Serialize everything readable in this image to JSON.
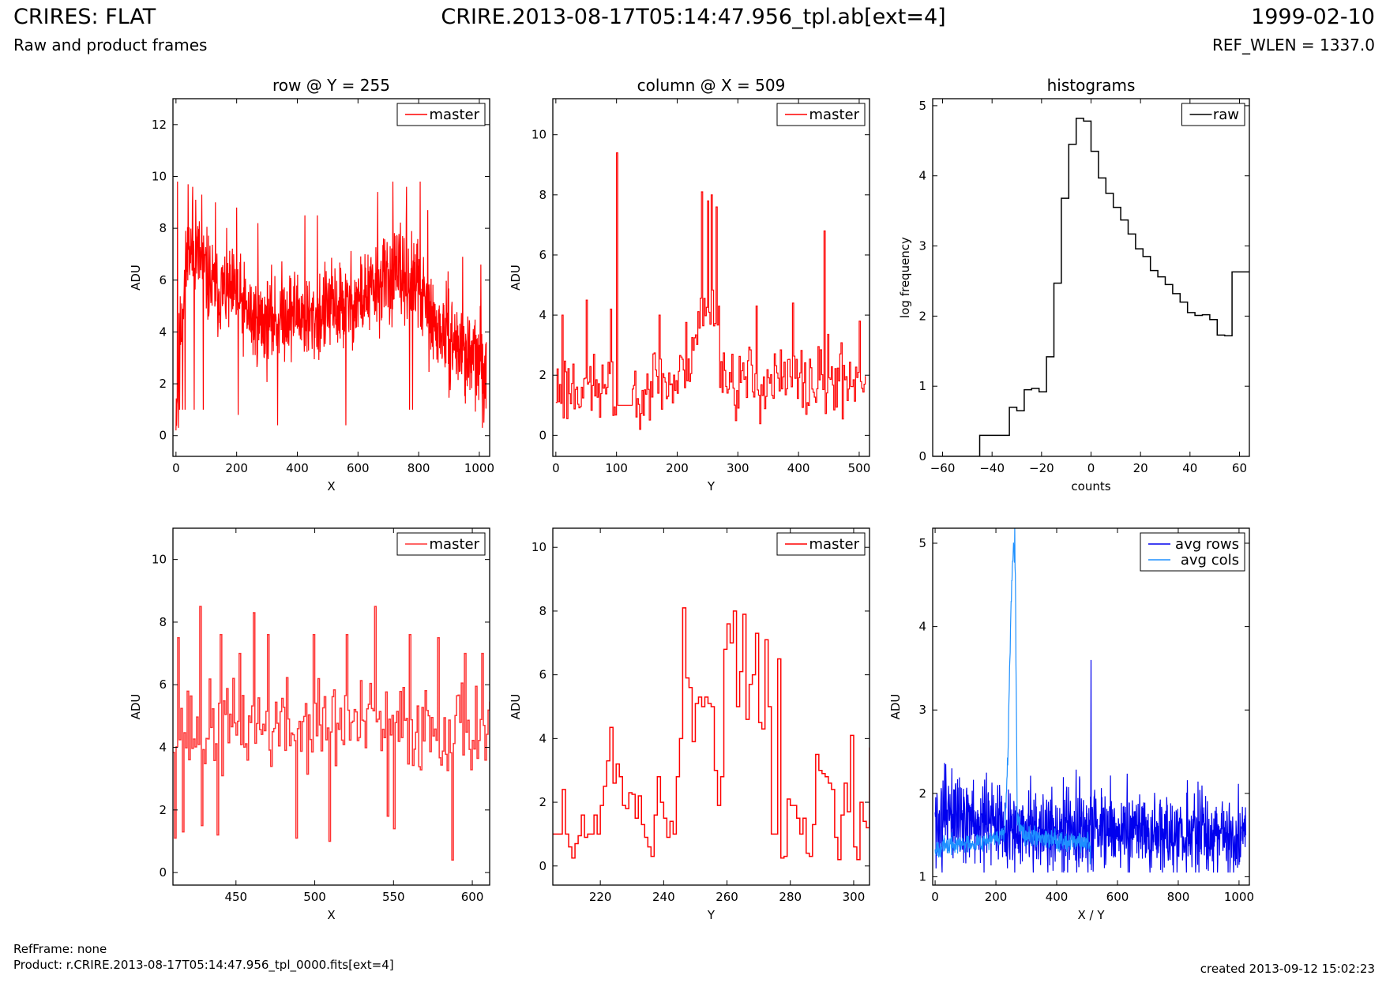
{
  "header": {
    "title": "CRIRES: FLAT",
    "subtitle": "Raw and product frames",
    "file": "CRIRE.2013-08-17T05:14:47.956_tpl.ab[ext=4]",
    "date": "1999-02-10",
    "ref_wlen": "REF_WLEN = 1337.0"
  },
  "footer": {
    "refframe": "RefFrame: none",
    "product": "Product: r.CRIRE.2013-08-17T05:14:47.956_tpl_0000.fits[ext=4]",
    "created": "created 2013-09-12 15:02:23"
  },
  "colors": {
    "master": "#ff0000",
    "master_zoom": "#ff3333",
    "raw": "#000000",
    "avg_rows": "#0000ee",
    "avg_cols": "#1e90ff"
  },
  "chart_data": [
    {
      "id": "row",
      "type": "line",
      "title": "row @ Y = 255",
      "xlabel": "X",
      "ylabel": "ADU",
      "xlim": [
        -10,
        1034
      ],
      "ylim": [
        -0.8,
        13
      ],
      "xticks": [
        0,
        200,
        400,
        600,
        800,
        1000
      ],
      "yticks": [
        0,
        2,
        4,
        6,
        8,
        10,
        12
      ],
      "legend": "top-right",
      "grid": false,
      "series": [
        {
          "name": "master",
          "color": "#ff0000",
          "step": false,
          "width": 1.2,
          "x_start": 0,
          "x_step": 1,
          "anchors": [
            [
              0,
              1.0
            ],
            [
              20,
              5.0
            ],
            [
              40,
              7.0
            ],
            [
              60,
              7.2
            ],
            [
              80,
              6.8
            ],
            [
              100,
              6.2
            ],
            [
              130,
              5.5
            ],
            [
              160,
              5.6
            ],
            [
              200,
              5.3
            ],
            [
              250,
              4.5
            ],
            [
              300,
              4.3
            ],
            [
              350,
              4.7
            ],
            [
              400,
              4.8
            ],
            [
              450,
              4.4
            ],
            [
              500,
              4.9
            ],
            [
              550,
              5.0
            ],
            [
              600,
              5.2
            ],
            [
              650,
              5.6
            ],
            [
              700,
              6.1
            ],
            [
              750,
              6.2
            ],
            [
              800,
              5.7
            ],
            [
              850,
              4.2
            ],
            [
              900,
              3.8
            ],
            [
              950,
              3.2
            ],
            [
              1000,
              2.8
            ],
            [
              1023,
              2.7
            ]
          ],
          "noise": 1.5,
          "seed": 11,
          "min": 0.2,
          "spikes": [
            [
              5,
              9.8
            ],
            [
              8,
              0.3
            ],
            [
              12,
              1.0
            ],
            [
              22,
              1.0
            ],
            [
              30,
              1.0
            ],
            [
              40,
              9.7
            ],
            [
              55,
              9.6
            ],
            [
              60,
              1.0
            ],
            [
              65,
              9.1
            ],
            [
              85,
              9.3
            ],
            [
              90,
              1.0
            ],
            [
              130,
              9.0
            ],
            [
              200,
              8.8
            ],
            [
              205,
              0.8
            ],
            [
              270,
              8.2
            ],
            [
              335,
              0.4
            ],
            [
              425,
              8.5
            ],
            [
              466,
              8.5
            ],
            [
              560,
              0.4
            ],
            [
              665,
              9.4
            ],
            [
              715,
              9.8
            ],
            [
              760,
              9.6
            ],
            [
              805,
              9.8
            ],
            [
              770,
              1.0
            ],
            [
              780,
              1.0
            ],
            [
              830,
              8.7
            ],
            [
              945,
              6.9
            ],
            [
              1005,
              6.6
            ],
            [
              1010,
              0.3
            ],
            [
              1015,
              0.5
            ]
          ]
        }
      ]
    },
    {
      "id": "col",
      "type": "line",
      "title": "column @ X = 509",
      "xlabel": "Y",
      "ylabel": "ADU",
      "xlim": [
        -5,
        517
      ],
      "ylim": [
        -0.7,
        11.2
      ],
      "xticks": [
        0,
        100,
        200,
        300,
        400,
        500
      ],
      "yticks": [
        0,
        2,
        4,
        6,
        8,
        10
      ],
      "legend": "top-right",
      "grid": false,
      "series": [
        {
          "name": "master",
          "color": "#ff0000",
          "step": true,
          "width": 1.2,
          "x_start": 0,
          "x_step": 2,
          "anchors": [
            [
              0,
              1.5
            ],
            [
              50,
              1.8
            ],
            [
              100,
              1.2
            ],
            [
              150,
              1.8
            ],
            [
              200,
              1.7
            ],
            [
              240,
              4.0
            ],
            [
              260,
              4.2
            ],
            [
              280,
              1.8
            ],
            [
              350,
              1.8
            ],
            [
              400,
              1.7
            ],
            [
              450,
              1.8
            ],
            [
              510,
              2.0
            ]
          ],
          "noise": 1.1,
          "seed": 23,
          "min": 0.2,
          "flat": [
            [
              102,
              125,
              1.0
            ]
          ],
          "spikes": [
            [
              100,
              9.4
            ],
            [
              240,
              8.1
            ],
            [
              250,
              7.8
            ],
            [
              256,
              8.0
            ],
            [
              264,
              7.6
            ],
            [
              442,
              6.8
            ],
            [
              10,
              4.0
            ],
            [
              50,
              4.5
            ],
            [
              90,
              4.2
            ],
            [
              170,
              4.0
            ],
            [
              330,
              4.3
            ],
            [
              390,
              4.4
            ],
            [
              500,
              3.8
            ]
          ]
        }
      ]
    },
    {
      "id": "hist",
      "type": "histogram",
      "title": "histograms",
      "xlabel": "counts",
      "ylabel": "log frequency",
      "xlim": [
        -64,
        64
      ],
      "ylim": [
        0,
        5.1
      ],
      "xticks": [
        -60,
        -40,
        -20,
        0,
        20,
        40,
        60
      ],
      "xtick_labels": [
        "−60",
        "−40",
        "−20",
        "0",
        "20",
        "40",
        "60"
      ],
      "yticks": [
        0,
        1,
        2,
        3,
        4,
        5
      ],
      "legend": "top-right",
      "grid": false,
      "series": [
        {
          "name": "raw",
          "color": "#000000",
          "edges": [
            -64,
            -45,
            -36,
            -33,
            -30,
            -27,
            -24,
            -21,
            -18,
            -15,
            -12,
            -9,
            -6,
            -3,
            0,
            3,
            6,
            9,
            12,
            15,
            18,
            21,
            24,
            27,
            30,
            33,
            36,
            39,
            42,
            45,
            48,
            51,
            54,
            57,
            60,
            64
          ],
          "values": [
            0,
            0.3,
            0.3,
            0.7,
            0.65,
            0.95,
            0.97,
            0.92,
            1.42,
            2.47,
            3.68,
            4.45,
            4.82,
            4.78,
            4.35,
            3.97,
            3.75,
            3.55,
            3.37,
            3.17,
            2.96,
            2.85,
            2.65,
            2.56,
            2.45,
            2.32,
            2.2,
            2.05,
            2.01,
            2.02,
            1.95,
            1.73,
            1.72,
            2.63,
            2.63
          ]
        }
      ]
    },
    {
      "id": "rowzoom",
      "type": "line",
      "title": "",
      "xlabel": "X",
      "ylabel": "ADU",
      "xlim": [
        410,
        611
      ],
      "ylim": [
        -0.4,
        11
      ],
      "xticks": [
        450,
        500,
        550,
        600
      ],
      "yticks": [
        0,
        2,
        4,
        6,
        8,
        10
      ],
      "legend": "top-right",
      "grid": false,
      "series": [
        {
          "name": "master",
          "color": "#ff3333",
          "step": true,
          "width": 1.5,
          "x_start": 410,
          "x_step": 1,
          "anchors": [
            [
              410,
              4.5
            ],
            [
              450,
              4.6
            ],
            [
              500,
              4.7
            ],
            [
              550,
              4.7
            ],
            [
              600,
              4.6
            ],
            [
              611,
              4.5
            ]
          ],
          "noise": 1.25,
          "seed": 37,
          "min": 0.3,
          "spikes": [
            [
              411,
              1.1
            ],
            [
              413,
              7.5
            ],
            [
              427,
              8.5
            ],
            [
              440,
              7.6
            ],
            [
              452,
              7.0
            ],
            [
              461,
              8.3
            ],
            [
              470,
              7.6
            ],
            [
              499,
              7.6
            ],
            [
              509,
              1.0
            ],
            [
              520,
              7.6
            ],
            [
              538,
              8.5
            ],
            [
              560,
              7.6
            ],
            [
              578,
              7.5
            ],
            [
              587,
              0.4
            ],
            [
              595,
              7.0
            ],
            [
              606,
              7.0
            ],
            [
              416,
              1.3
            ],
            [
              428,
              1.5
            ],
            [
              438,
              1.2
            ],
            [
              488,
              1.1
            ],
            [
              546,
              1.8
            ],
            [
              550,
              1.4
            ]
          ]
        }
      ]
    },
    {
      "id": "colzoom",
      "type": "line",
      "title": "",
      "xlabel": "Y",
      "ylabel": "ADU",
      "xlim": [
        205,
        305
      ],
      "ylim": [
        -0.6,
        10.6
      ],
      "xticks": [
        220,
        240,
        260,
        280,
        300
      ],
      "yticks": [
        0,
        2,
        4,
        6,
        8,
        10
      ],
      "legend": "top-right",
      "grid": false,
      "series": [
        {
          "name": "master",
          "color": "#ff0000",
          "step": true,
          "width": 1.5,
          "x_start": 205,
          "x_step": 1,
          "values": [
            1.0,
            1.0,
            1.0,
            2.4,
            1.0,
            0.6,
            0.25,
            0.7,
            0.95,
            1.6,
            0.9,
            1.0,
            1.0,
            1.6,
            1.0,
            1.9,
            2.5,
            3.3,
            4.35,
            2.6,
            3.2,
            2.8,
            1.9,
            1.8,
            2.3,
            2.25,
            1.5,
            2.2,
            1.3,
            0.9,
            0.6,
            0.3,
            1.6,
            2.8,
            2.0,
            1.5,
            0.9,
            1.4,
            1.0,
            2.8,
            4.0,
            8.1,
            5.9,
            5.6,
            3.9,
            5.1,
            5.3,
            5.0,
            5.3,
            5.1,
            5.0,
            3.0,
            1.9,
            2.8,
            6.8,
            7.6,
            7.0,
            8.0,
            5.0,
            6.1,
            7.9,
            4.6,
            5.7,
            6.0,
            7.3,
            4.5,
            4.3,
            7.1,
            5.0,
            1.0,
            1.0,
            6.5,
            0.25,
            0.3,
            2.1,
            1.9,
            1.9,
            1.5,
            1.0,
            1.5,
            0.4,
            0.3,
            1.3,
            3.5,
            3.0,
            2.9,
            2.8,
            2.6,
            2.4,
            0.9,
            0.2,
            1.6,
            2.6,
            1.7,
            4.1,
            0.6,
            0.2,
            2.0,
            1.4,
            1.2,
            3.7,
            0.5,
            5.4,
            0.7,
            1.0,
            0.8
          ]
        }
      ]
    },
    {
      "id": "avg",
      "type": "line",
      "title": "",
      "xlabel": "X / Y",
      "ylabel": "ADU",
      "xlim": [
        -8,
        1034
      ],
      "ylim": [
        0.9,
        5.18
      ],
      "xticks": [
        0,
        200,
        400,
        600,
        800,
        1000
      ],
      "yticks": [
        1,
        2,
        3,
        4,
        5
      ],
      "legend": "top-right",
      "grid": false,
      "series": [
        {
          "name": "avg rows",
          "color": "#0000ee",
          "step": false,
          "width": 1.2,
          "x_start": 0,
          "x_step": 1,
          "anchors": [
            [
              0,
              1.6
            ],
            [
              60,
              1.8
            ],
            [
              120,
              1.65
            ],
            [
              200,
              1.6
            ],
            [
              300,
              1.55
            ],
            [
              400,
              1.55
            ],
            [
              600,
              1.55
            ],
            [
              800,
              1.5
            ],
            [
              1023,
              1.5
            ]
          ],
          "noise": 0.35,
          "seed": 51,
          "min": 1.05,
          "osc": 0.18,
          "osc_period": 6,
          "spikes": [
            [
              513,
              3.6
            ],
            [
              3,
              1.1
            ],
            [
              35,
              2.35
            ],
            [
              55,
              2.3
            ]
          ]
        },
        {
          "name": "avg cols",
          "color": "#1e90ff",
          "step": false,
          "width": 1.2,
          "x_start": 0,
          "x_step": 1,
          "anchors": [
            [
              0,
              1.35
            ],
            [
              100,
              1.4
            ],
            [
              200,
              1.45
            ],
            [
              230,
              1.55
            ],
            [
              240,
              2.5
            ],
            [
              250,
              4.3
            ],
            [
              258,
              5.0
            ],
            [
              264,
              4.6
            ],
            [
              270,
              1.7
            ],
            [
              300,
              1.5
            ],
            [
              400,
              1.45
            ],
            [
              511,
              1.4
            ]
          ],
          "noise": 0.1,
          "seed": 67,
          "min": 1.1,
          "spikes": [
            [
              257,
              4.9
            ],
            [
              262,
              5.2
            ],
            [
              510,
              1.15
            ]
          ]
        }
      ]
    }
  ]
}
